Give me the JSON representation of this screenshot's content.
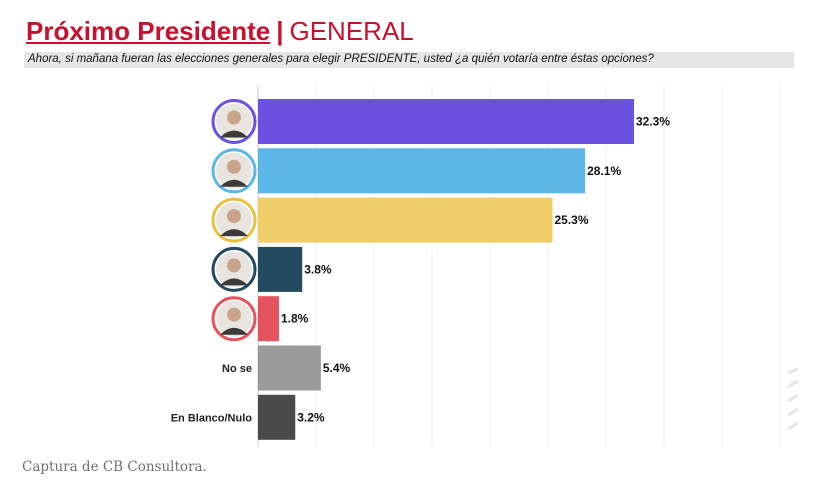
{
  "header": {
    "title": "Próximo Presidente",
    "separator": "|",
    "subtitle": "GENERAL",
    "question": "Ahora, si mañana fueran las elecciones generales para elegir PRESIDENTE, usted ¿a quién votaría entre éstas opciones?"
  },
  "caption": "Captura de CB Consultora.",
  "chart_data": {
    "type": "bar",
    "orientation": "horizontal",
    "xlim": [
      0,
      35
    ],
    "categories": [
      "",
      "",
      "",
      "",
      "",
      "No se",
      "En Blanco/Nulo"
    ],
    "values": [
      32.3,
      28.1,
      25.3,
      3.8,
      1.8,
      5.4,
      3.2
    ],
    "value_labels": [
      "32.3%",
      "28.1%",
      "25.3%",
      "3.8%",
      "1.8%",
      "5.4%",
      "3.2%"
    ],
    "colors": [
      "#6b52e0",
      "#5cb6e6",
      "#f0cf6a",
      "#234a5e",
      "#e4545e",
      "#9a9a9a",
      "#4a4a4a"
    ],
    "avatar_rings": [
      "#6b52e0",
      "#5cb6e6",
      "#e8c040",
      "#234a5e",
      "#e4545e",
      null,
      null
    ],
    "grid": true
  }
}
